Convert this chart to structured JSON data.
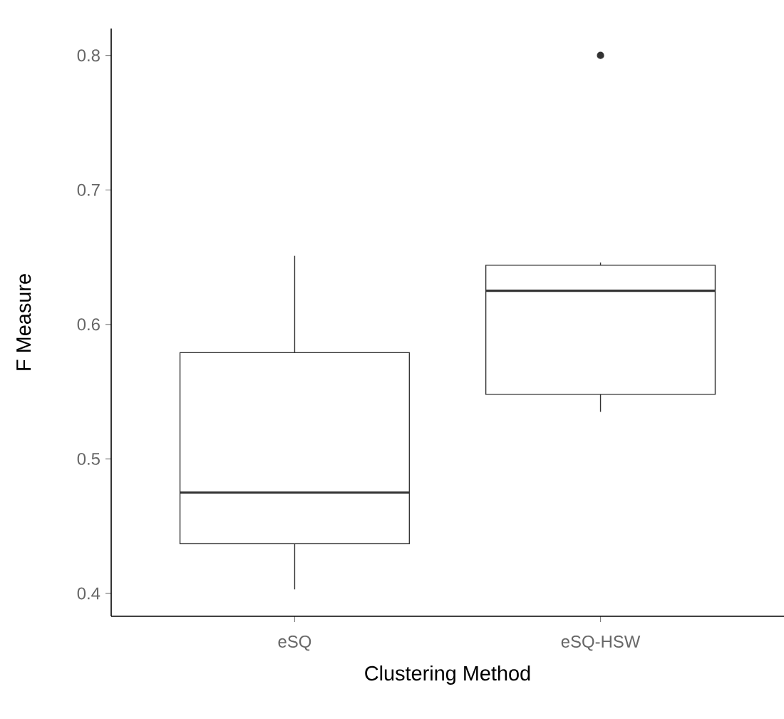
{
  "chart_data": {
    "type": "box",
    "xlabel": "Clustering Method",
    "ylabel": "F Measure",
    "categories": [
      "eSQ",
      "eSQ-HSW"
    ],
    "boxes": [
      {
        "low": 0.403,
        "q1": 0.437,
        "median": 0.475,
        "q3": 0.579,
        "high": 0.651
      },
      {
        "low": 0.535,
        "q1": 0.548,
        "median": 0.625,
        "q3": 0.644,
        "high": 0.646,
        "outliers": [
          0.8
        ]
      }
    ],
    "color": "#333333",
    "ylim": [
      0.383,
      0.82
    ],
    "yticks": [
      {
        "value": 0.4,
        "label": "0.4"
      },
      {
        "value": 0.5,
        "label": "0.5"
      },
      {
        "value": 0.6,
        "label": "0.6"
      },
      {
        "value": 0.7,
        "label": "0.7"
      },
      {
        "value": 0.8,
        "label": "0.8"
      }
    ],
    "grid": false
  }
}
